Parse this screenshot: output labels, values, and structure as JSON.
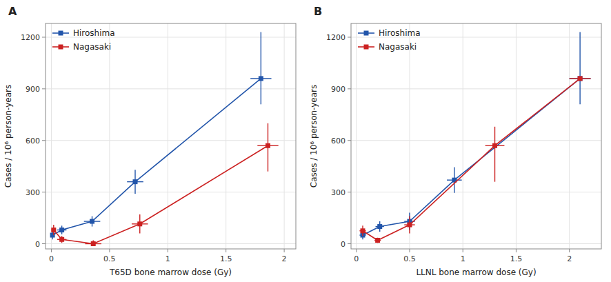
{
  "chart_data": [
    {
      "type": "line",
      "title": "A",
      "x_label": "T65D bone marrow dose (Gy)",
      "y_label": "Cases / 10⁶ person-years",
      "xlim": [
        -0.05,
        2.1
      ],
      "xticks": [
        0,
        0.5,
        1,
        1.5,
        2
      ],
      "ylim": [
        -30,
        1280
      ],
      "yticks": [
        0,
        300,
        600,
        900,
        1200
      ],
      "grid": true,
      "legend": "upper left",
      "series": [
        {
          "name": "Hiroshima",
          "color": "#2255aa",
          "marker": "square",
          "line_style": "solid",
          "x": [
            0.01,
            0.09,
            0.35,
            0.72,
            1.8
          ],
          "values": [
            50,
            80,
            130,
            360,
            960
          ],
          "xerr_lo": [
            0.01,
            0.04,
            0.07,
            0.07,
            0.09
          ],
          "xerr_hi": [
            0.01,
            0.04,
            0.07,
            0.07,
            0.09
          ],
          "yerr_lo": [
            25,
            25,
            30,
            70,
            150
          ],
          "yerr_hi": [
            25,
            25,
            30,
            70,
            270
          ]
        },
        {
          "name": "Nagasaki",
          "color": "#cc2222",
          "marker": "square",
          "line_style": "solid",
          "x": [
            0.02,
            0.09,
            0.36,
            0.76,
            1.86
          ],
          "values": [
            80,
            25,
            0,
            115,
            570
          ],
          "xerr_lo": [
            0.02,
            0.04,
            0.07,
            0.07,
            0.09
          ],
          "xerr_hi": [
            0.02,
            0.04,
            0.07,
            0.07,
            0.09
          ],
          "yerr_lo": [
            30,
            20,
            0,
            55,
            150
          ],
          "yerr_hi": [
            30,
            20,
            20,
            55,
            130
          ]
        }
      ]
    },
    {
      "type": "line",
      "title": "B",
      "x_label": "LLNL bone marrow dose (Gy)",
      "y_label": "Cases / 10⁶ person-years",
      "xlim": [
        -0.05,
        2.3
      ],
      "xticks": [
        0,
        0.5,
        1,
        1.5,
        2
      ],
      "ylim": [
        -30,
        1280
      ],
      "yticks": [
        0,
        300,
        600,
        900,
        1200
      ],
      "grid": true,
      "legend": "upper left",
      "series": [
        {
          "name": "Hiroshima",
          "color": "#2255aa",
          "marker": "square",
          "line_style": "solid",
          "x": [
            0.06,
            0.22,
            0.5,
            0.92,
            2.1
          ],
          "values": [
            50,
            100,
            130,
            370,
            960
          ],
          "xerr_lo": [
            0.03,
            0.04,
            0.05,
            0.07,
            0.1
          ],
          "xerr_hi": [
            0.03,
            0.04,
            0.05,
            0.07,
            0.1
          ],
          "yerr_lo": [
            25,
            30,
            50,
            75,
            150
          ],
          "yerr_hi": [
            25,
            30,
            50,
            75,
            270
          ]
        },
        {
          "name": "Nagasaki",
          "color": "#cc2222",
          "marker": "square",
          "line_style": "solid",
          "x": [
            0.06,
            0.2,
            0.5,
            1.3,
            2.1
          ],
          "values": [
            75,
            20,
            110,
            570,
            960
          ],
          "xerr_lo": [
            0.03,
            0.03,
            0.05,
            0.09,
            0.1
          ],
          "xerr_hi": [
            0.03,
            0.03,
            0.05,
            0.09,
            0.1
          ],
          "yerr_lo": [
            30,
            15,
            50,
            210,
            0
          ],
          "yerr_hi": [
            30,
            15,
            50,
            110,
            0
          ]
        }
      ]
    }
  ]
}
